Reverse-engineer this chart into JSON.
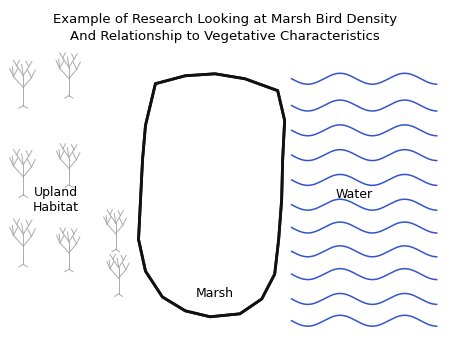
{
  "title_line1": "Example of Research Looking at Marsh Bird Density",
  "title_line2": "And Relationship to Vegetative Characteristics",
  "label_upland": "Upland\nHabitat",
  "label_marsh": "Marsh",
  "label_water": "Water",
  "bg_color": "#ffffff",
  "upland_plant_color": "#aaaaaa",
  "marsh_plant_color": "#666666",
  "water_wave_color": "#3355cc",
  "marsh_outline_color": "#111111",
  "title_fontsize": 9.5,
  "label_fontsize": 9
}
